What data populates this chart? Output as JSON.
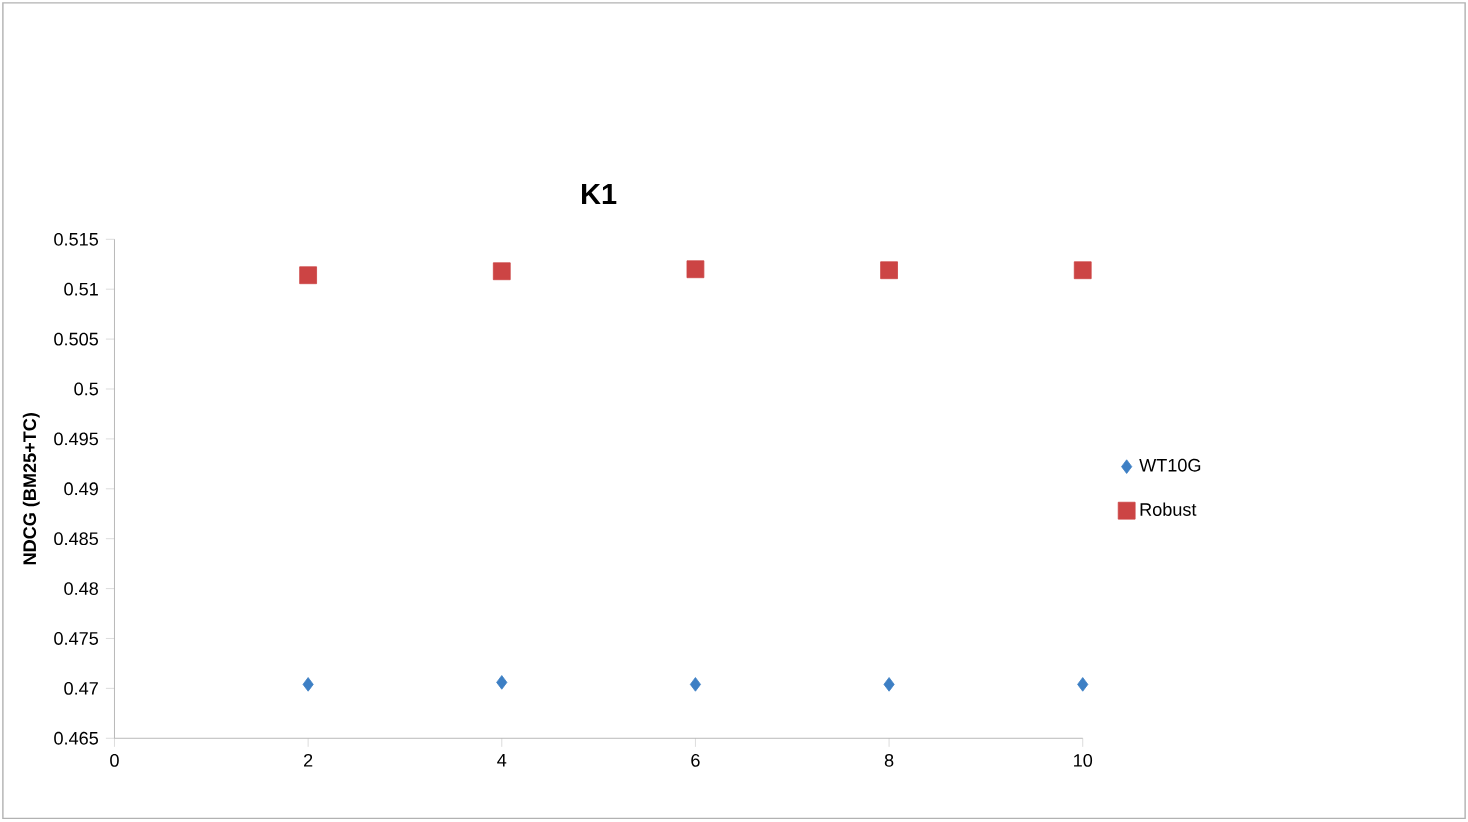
{
  "chart_data": {
    "type": "scatter",
    "title": "K1",
    "ylabel": "NDCG (BM25+TC)",
    "x": [
      2,
      4,
      6,
      8,
      10
    ],
    "series": [
      {
        "name": "WT10G",
        "color": "#3d7fc4",
        "marker": "diamond",
        "values": [
          0.4704,
          0.4706,
          0.4704,
          0.4704,
          0.4704
        ]
      },
      {
        "name": "Robust",
        "color": "#cc4444",
        "marker": "square",
        "values": [
          0.5114,
          0.5118,
          0.512,
          0.5119,
          0.5119
        ]
      }
    ],
    "xlim": [
      0,
      10
    ],
    "xticks": [
      0,
      2,
      4,
      6,
      8,
      10
    ],
    "ylim": [
      0.465,
      0.515
    ],
    "yticks": [
      0.465,
      0.47,
      0.475,
      0.48,
      0.485,
      0.49,
      0.495,
      0.5,
      0.505,
      0.51,
      0.515
    ],
    "grid": false,
    "legend": "right"
  }
}
